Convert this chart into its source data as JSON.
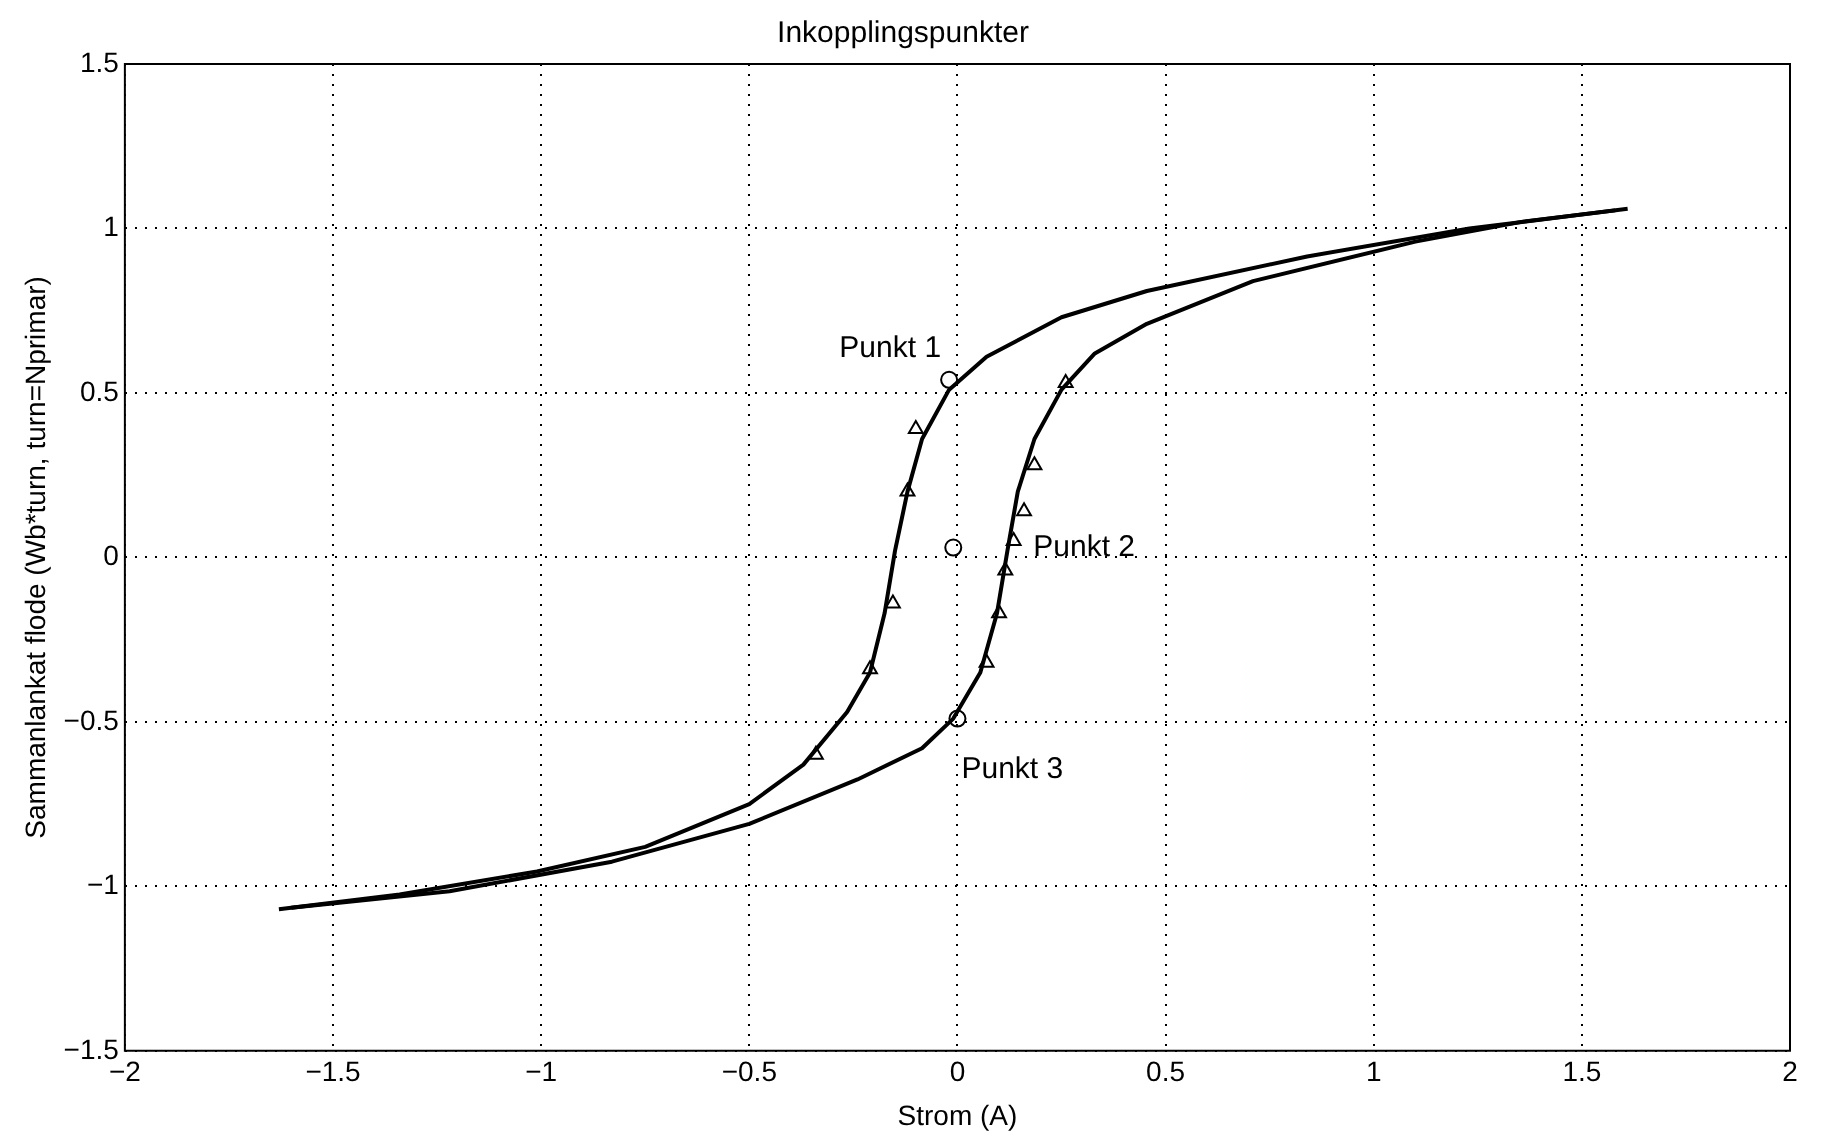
{
  "chart_data": {
    "type": "line",
    "title": "Inkopplingspunkter",
    "xlabel": "Strom (A)",
    "ylabel": "Sammanlankat flode (Wb*turn, turn=Nprimar)",
    "xlim": [
      -2,
      2
    ],
    "xticks": [
      -2,
      -1.5,
      -1,
      -0.5,
      0,
      0.5,
      1,
      1.5,
      2
    ],
    "ylim": [
      -1.5,
      1.5
    ],
    "yticks": [
      -1.5,
      -1,
      -0.5,
      0,
      0.5,
      1,
      1.5
    ],
    "grid": true,
    "legend": false,
    "line_style": "solid",
    "marker": "none",
    "series": [
      {
        "color": "#000000",
        "x": [
          1.61,
          1.23,
          0.84,
          0.455,
          0.25,
          0.07,
          -0.02,
          -0.085,
          -0.12,
          -0.15,
          -0.175,
          -0.21,
          -0.265,
          -0.37,
          -0.5,
          -0.75,
          -1.01,
          -1.34,
          -1.63
        ],
        "values": [
          1.06,
          1.0,
          0.915,
          0.81,
          0.73,
          0.61,
          0.51,
          0.36,
          0.2,
          0.02,
          -0.17,
          -0.35,
          -0.47,
          -0.63,
          -0.75,
          -0.88,
          -0.955,
          -1.025,
          -1.07
        ]
      },
      {
        "color": "#000000",
        "x": [
          -1.6,
          -1.22,
          -0.83,
          -0.5,
          -0.24,
          -0.085,
          -0.01,
          0.055,
          0.095,
          0.12,
          0.145,
          0.185,
          0.25,
          0.33,
          0.455,
          0.71,
          1.1,
          1.355,
          1.58
        ],
        "values": [
          -1.065,
          -1.015,
          -0.925,
          -0.81,
          -0.675,
          -0.58,
          -0.49,
          -0.35,
          -0.17,
          0.02,
          0.2,
          0.36,
          0.51,
          0.62,
          0.71,
          0.84,
          0.96,
          1.02,
          1.055
        ]
      },
      {
        "type": "scatter",
        "color": "#000000",
        "marker": "triangle",
        "x": [
          0.26,
          0.185,
          0.16,
          0.135,
          0.115,
          0.1,
          0.07,
          -0.1,
          -0.12,
          -0.155,
          -0.21,
          -0.34
        ],
        "values": [
          0.53,
          0.28,
          0.14,
          0.05,
          -0.04,
          -0.17,
          -0.32,
          0.39,
          0.2,
          -0.14,
          -0.34,
          -0.6
        ]
      },
      {
        "type": "scatter",
        "color": "#000000",
        "marker": "circle",
        "x": [
          -0.02,
          -0.01,
          0.0
        ],
        "values": [
          0.54,
          0.03,
          -0.49
        ]
      }
    ],
    "annotations": [
      {
        "text": "Punkt 1",
        "x": -0.02,
        "y": 0.54
      },
      {
        "text": "Punkt 2",
        "x": -0.01,
        "y": 0.03
      },
      {
        "text": "Punkt 3",
        "x": 0.0,
        "y": -0.49
      }
    ]
  }
}
